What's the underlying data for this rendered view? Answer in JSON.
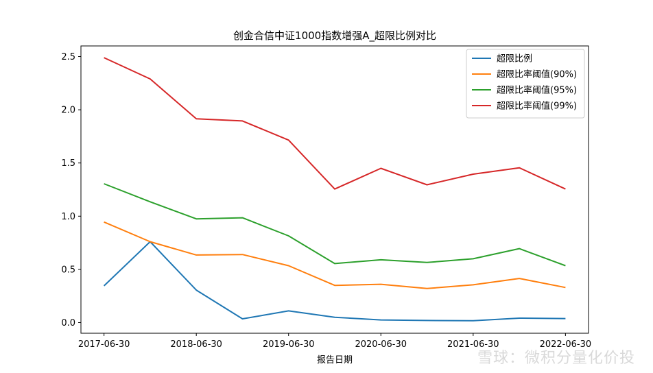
{
  "chart_data": {
    "type": "line",
    "title": "创金合信中证1000指数增强A_超限比例对比",
    "xlabel": "报告日期",
    "ylabel": "",
    "x": [
      "2017-06-30",
      "2017-12-31",
      "2018-06-30",
      "2018-12-31",
      "2019-06-30",
      "2019-12-31",
      "2020-06-30",
      "2020-12-31",
      "2021-06-30",
      "2021-12-31",
      "2022-06-30"
    ],
    "xticks": [
      "2017-06-30",
      "2018-06-30",
      "2019-06-30",
      "2020-06-30",
      "2021-06-30",
      "2022-06-30"
    ],
    "ylim": [
      -0.1,
      2.6
    ],
    "yticks": [
      "0.0",
      "0.5",
      "1.0",
      "1.5",
      "2.0",
      "2.5"
    ],
    "legend_position": "top-right",
    "series": [
      {
        "name": "超限比例",
        "color": "#1f77b4",
        "values": [
          0.345,
          0.76,
          0.305,
          0.035,
          0.11,
          0.05,
          0.025,
          0.02,
          0.018,
          0.042,
          0.038
        ]
      },
      {
        "name": "超限比率阈值(90%)",
        "color": "#ff7f0e",
        "values": [
          0.945,
          0.76,
          0.635,
          0.64,
          0.535,
          0.35,
          0.36,
          0.32,
          0.355,
          0.415,
          0.33
        ]
      },
      {
        "name": "超限比率阈值(95%)",
        "color": "#2ca02c",
        "values": [
          1.305,
          1.135,
          0.975,
          0.985,
          0.815,
          0.555,
          0.59,
          0.565,
          0.6,
          0.695,
          0.535
        ]
      },
      {
        "name": "超限比率阈值(99%)",
        "color": "#d62728",
        "values": [
          2.49,
          2.29,
          1.915,
          1.895,
          1.715,
          1.255,
          1.45,
          1.295,
          1.395,
          1.455,
          1.255
        ]
      }
    ]
  },
  "watermark": "雪球：微积分量化价投"
}
